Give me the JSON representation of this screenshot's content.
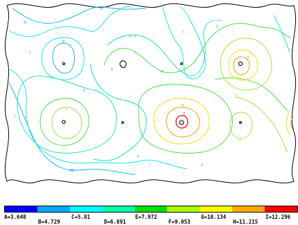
{
  "legend": {
    "colors": [
      "#0000ff",
      "#00aaff",
      "#00ffff",
      "#00ffaa",
      "#00e000",
      "#aaff00",
      "#ffff00",
      "#ffaa00",
      "#ff0000"
    ],
    "labels_top": [
      "A=3.648",
      "C=5.81",
      "E=7.972",
      "G=10.134",
      "I=12.296"
    ],
    "labels_bottom": [
      "B=4.729",
      "D=6.891",
      "F=9.053",
      "H=11.215"
    ]
  },
  "plot": {
    "contour_colors": {
      "B": "#00aaff",
      "C": "#00e0ff",
      "D": "#00e8a0",
      "E": "#30e030",
      "F": "#a0e030",
      "G": "#e8e000",
      "H": "#ff9900",
      "I": "#ff0000",
      "low": "#000000"
    },
    "level_letters": [
      "B",
      "C",
      "D",
      "E",
      "F",
      "G",
      "H",
      "I"
    ]
  }
}
